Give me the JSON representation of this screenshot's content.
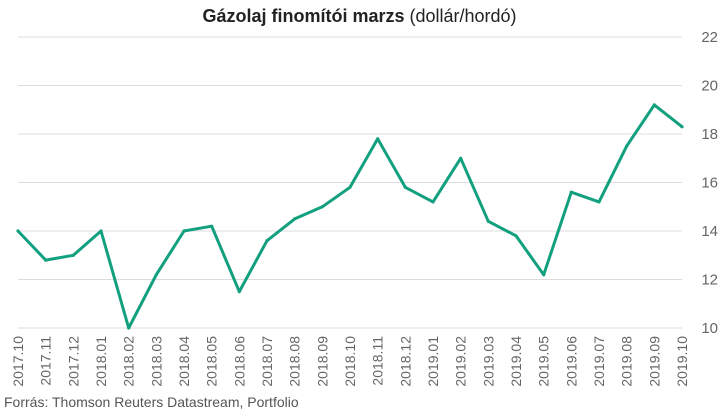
{
  "chart_data": {
    "type": "line",
    "title_bold": "Gázolaj finomítói marzs",
    "title_rest": "(dollár/hordó)",
    "source": "Forrás: Thomson Reuters Datastream, Portfolio",
    "x_tick_labels": [
      "2017.10",
      "2017.11",
      "2017.12",
      "2018.01",
      "2018.02",
      "2018.03",
      "2018.04",
      "2018.05",
      "2018.06",
      "2018.07",
      "2018.08",
      "2018.09",
      "2018.10",
      "2018.11",
      "2018.12",
      "2019.01",
      "2019.02",
      "2019.03",
      "2019.04",
      "2019.05",
      "2019.06",
      "2019.07",
      "2019.08",
      "2019.09",
      "2019.10"
    ],
    "y_ticks": [
      10,
      12,
      14,
      16,
      18,
      20,
      22
    ],
    "ylim": [
      10,
      22
    ],
    "grid": true,
    "line_color": "#12a07e",
    "series": [
      {
        "x": [
          "2017.10",
          "2017.11",
          "2017.12",
          "2018.01",
          "2018.02",
          "2018.03",
          "2018.04",
          "2018.05",
          "2018.06",
          "2018.07",
          "2018.08",
          "2018.09",
          "2018.10",
          "2018.11",
          "2018.12",
          "2019.01",
          "2019.02",
          "2019.03",
          "2019.04",
          "2019.05",
          "2019.06",
          "2019.07",
          "2019.08",
          "2019.09",
          "2019.10"
        ],
        "values": [
          14.0,
          12.8,
          13.0,
          14.0,
          10.0,
          12.2,
          14.0,
          14.2,
          11.5,
          13.6,
          14.5,
          15.0,
          15.8,
          17.8,
          15.8,
          15.2,
          17.0,
          14.4,
          13.8,
          12.2,
          15.6,
          15.2,
          17.5,
          19.2,
          18.3
        ]
      }
    ]
  }
}
